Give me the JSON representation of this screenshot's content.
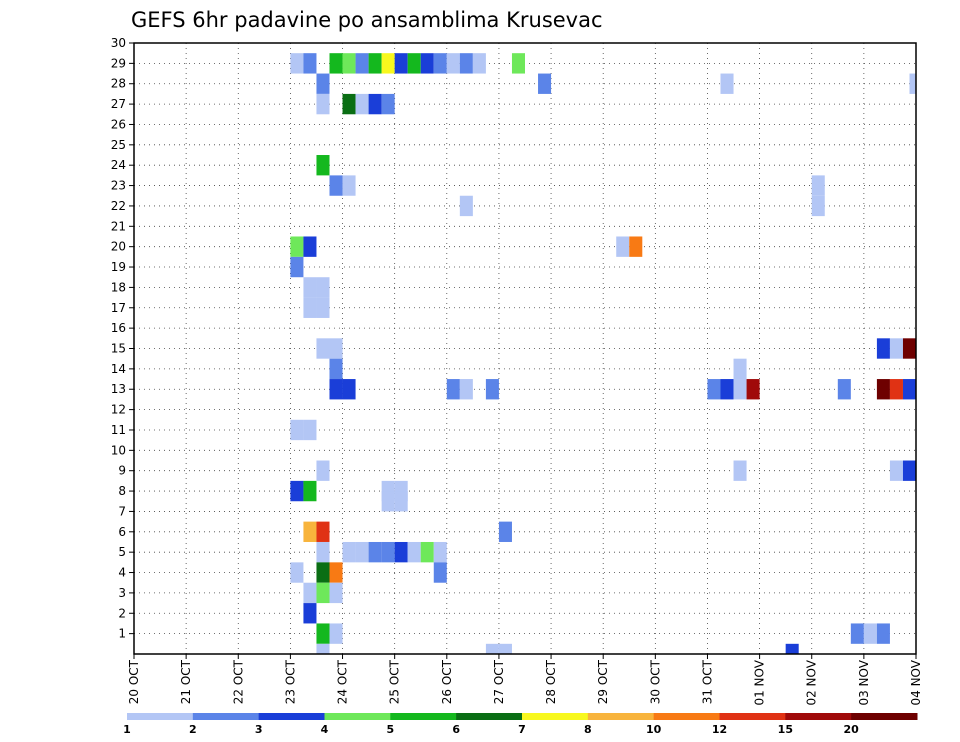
{
  "chart_data": {
    "type": "heatmap",
    "title": "GEFS 6hr padavine po ansamblima Krusevac",
    "xlabel": "",
    "ylabel": "",
    "x_tick_labels": [
      "20 OCT",
      "21 OCT",
      "22 OCT",
      "23 OCT",
      "24 OCT",
      "25 OCT",
      "26 OCT",
      "27 OCT",
      "28 OCT",
      "29 OCT",
      "30 OCT",
      "31 OCT",
      "01 NOV",
      "02 NOV",
      "03 NOV",
      "04 NOV"
    ],
    "y_tick_labels": [
      "1",
      "2",
      "3",
      "4",
      "5",
      "6",
      "7",
      "8",
      "9",
      "10",
      "11",
      "12",
      "13",
      "14",
      "15",
      "16",
      "17",
      "18",
      "19",
      "20",
      "21",
      "22",
      "23",
      "24",
      "25",
      "26",
      "27",
      "28",
      "29",
      "30"
    ],
    "xlim": [
      0,
      60
    ],
    "ylim": [
      0,
      30
    ],
    "x_unit": "6-hour steps from 20 OCT",
    "grid": true,
    "legend": {
      "position": "bottom",
      "labels": [
        "1",
        "2",
        "3",
        "4",
        "5",
        "6",
        "7",
        "8",
        "10",
        "12",
        "15",
        "20"
      ],
      "colors": [
        "#b3c6f5",
        "#5b84e8",
        "#1a3ed8",
        "#6ee85a",
        "#14b81e",
        "#0a6e14",
        "#f8f81e",
        "#f8b43c",
        "#f87a14",
        "#e03214",
        "#a00a0a",
        "#6e0000"
      ]
    },
    "cells": [
      {
        "x": 12.5,
        "y": 29,
        "v": 1
      },
      {
        "x": 13.5,
        "y": 29,
        "v": 2
      },
      {
        "x": 15.5,
        "y": 29,
        "v": 5
      },
      {
        "x": 16.5,
        "y": 29,
        "v": 4
      },
      {
        "x": 17.5,
        "y": 29,
        "v": 2
      },
      {
        "x": 18.5,
        "y": 29,
        "v": 5
      },
      {
        "x": 19.5,
        "y": 29,
        "v": 7
      },
      {
        "x": 20.5,
        "y": 29,
        "v": 3
      },
      {
        "x": 21.5,
        "y": 29,
        "v": 5
      },
      {
        "x": 22.5,
        "y": 29,
        "v": 3
      },
      {
        "x": 23.5,
        "y": 29,
        "v": 2
      },
      {
        "x": 24.5,
        "y": 29,
        "v": 1
      },
      {
        "x": 25.5,
        "y": 29,
        "v": 2
      },
      {
        "x": 26.5,
        "y": 29,
        "v": 1
      },
      {
        "x": 29.5,
        "y": 29,
        "v": 4
      },
      {
        "x": 14.5,
        "y": 28,
        "v": 2
      },
      {
        "x": 31.5,
        "y": 28,
        "v": 2
      },
      {
        "x": 45.5,
        "y": 28,
        "v": 1
      },
      {
        "x": 60,
        "y": 28,
        "v": 1
      },
      {
        "x": 14.5,
        "y": 27,
        "v": 1
      },
      {
        "x": 16.5,
        "y": 27,
        "v": 6
      },
      {
        "x": 17.5,
        "y": 27,
        "v": 1
      },
      {
        "x": 18.5,
        "y": 27,
        "v": 3
      },
      {
        "x": 19.5,
        "y": 27,
        "v": 2
      },
      {
        "x": 14.5,
        "y": 24,
        "v": 5
      },
      {
        "x": 15.5,
        "y": 23,
        "v": 2
      },
      {
        "x": 16.5,
        "y": 23,
        "v": 1
      },
      {
        "x": 52.5,
        "y": 23,
        "v": 1
      },
      {
        "x": 25.5,
        "y": 22,
        "v": 1
      },
      {
        "x": 52.5,
        "y": 22,
        "v": 1
      },
      {
        "x": 12.5,
        "y": 20,
        "v": 4
      },
      {
        "x": 13.5,
        "y": 20,
        "v": 3
      },
      {
        "x": 37.5,
        "y": 20,
        "v": 1
      },
      {
        "x": 38.5,
        "y": 20,
        "v": 10
      },
      {
        "x": 12.5,
        "y": 19,
        "v": 2
      },
      {
        "x": 13.5,
        "y": 18,
        "v": 1
      },
      {
        "x": 14.5,
        "y": 18,
        "v": 1
      },
      {
        "x": 13.5,
        "y": 17,
        "v": 1
      },
      {
        "x": 14.5,
        "y": 17,
        "v": 1
      },
      {
        "x": 14.5,
        "y": 15,
        "v": 1
      },
      {
        "x": 15.5,
        "y": 15,
        "v": 1
      },
      {
        "x": 57.5,
        "y": 15,
        "v": 3
      },
      {
        "x": 58.5,
        "y": 15,
        "v": 1
      },
      {
        "x": 59.5,
        "y": 15,
        "v": 20
      },
      {
        "x": 15.5,
        "y": 14,
        "v": 2
      },
      {
        "x": 46.5,
        "y": 14,
        "v": 1
      },
      {
        "x": 15.5,
        "y": 13,
        "v": 3
      },
      {
        "x": 16.5,
        "y": 13,
        "v": 3
      },
      {
        "x": 24.5,
        "y": 13,
        "v": 2
      },
      {
        "x": 25.5,
        "y": 13,
        "v": 1
      },
      {
        "x": 27.5,
        "y": 13,
        "v": 2
      },
      {
        "x": 44.5,
        "y": 13,
        "v": 2
      },
      {
        "x": 45.5,
        "y": 13,
        "v": 3
      },
      {
        "x": 46.5,
        "y": 13,
        "v": 1
      },
      {
        "x": 47.5,
        "y": 13,
        "v": 15
      },
      {
        "x": 54.5,
        "y": 13,
        "v": 2
      },
      {
        "x": 57.5,
        "y": 13,
        "v": 20
      },
      {
        "x": 58.5,
        "y": 13,
        "v": 12
      },
      {
        "x": 59.5,
        "y": 13,
        "v": 3
      },
      {
        "x": 12.5,
        "y": 11,
        "v": 1
      },
      {
        "x": 13.5,
        "y": 11,
        "v": 1
      },
      {
        "x": 14.5,
        "y": 9,
        "v": 1
      },
      {
        "x": 46.5,
        "y": 9,
        "v": 1
      },
      {
        "x": 58.5,
        "y": 9,
        "v": 1
      },
      {
        "x": 59.5,
        "y": 9,
        "v": 3
      },
      {
        "x": 12.5,
        "y": 8,
        "v": 3
      },
      {
        "x": 13.5,
        "y": 8,
        "v": 5
      },
      {
        "x": 19.5,
        "y": 8,
        "v": 1
      },
      {
        "x": 20.5,
        "y": 8,
        "v": 1
      },
      {
        "x": 19.5,
        "y": 7.5,
        "v": 1
      },
      {
        "x": 20.5,
        "y": 7.5,
        "v": 1
      },
      {
        "x": 13.5,
        "y": 6,
        "v": 8
      },
      {
        "x": 14.5,
        "y": 6,
        "v": 12
      },
      {
        "x": 28.5,
        "y": 6,
        "v": 2
      },
      {
        "x": 14.5,
        "y": 5,
        "v": 1
      },
      {
        "x": 16.5,
        "y": 5,
        "v": 1
      },
      {
        "x": 17.5,
        "y": 5,
        "v": 1
      },
      {
        "x": 18.5,
        "y": 5,
        "v": 2
      },
      {
        "x": 19.5,
        "y": 5,
        "v": 2
      },
      {
        "x": 20.5,
        "y": 5,
        "v": 3
      },
      {
        "x": 21.5,
        "y": 5,
        "v": 1
      },
      {
        "x": 22.5,
        "y": 5,
        "v": 4
      },
      {
        "x": 23.5,
        "y": 5,
        "v": 1
      },
      {
        "x": 12.5,
        "y": 4,
        "v": 1
      },
      {
        "x": 14.5,
        "y": 4,
        "v": 6
      },
      {
        "x": 15.5,
        "y": 4,
        "v": 10
      },
      {
        "x": 23.5,
        "y": 4,
        "v": 2
      },
      {
        "x": 13.5,
        "y": 3,
        "v": 1
      },
      {
        "x": 14.5,
        "y": 3,
        "v": 4
      },
      {
        "x": 15.5,
        "y": 3,
        "v": 1
      },
      {
        "x": 13.5,
        "y": 2,
        "v": 3
      },
      {
        "x": 14.5,
        "y": 1,
        "v": 5
      },
      {
        "x": 15.5,
        "y": 1,
        "v": 1
      },
      {
        "x": 55.5,
        "y": 1,
        "v": 2
      },
      {
        "x": 56.5,
        "y": 1,
        "v": 1
      },
      {
        "x": 57.5,
        "y": 1,
        "v": 2
      },
      {
        "x": 14.5,
        "y": 0,
        "v": 1
      },
      {
        "x": 27.5,
        "y": 0,
        "v": 1
      },
      {
        "x": 28.5,
        "y": 0,
        "v": 1
      },
      {
        "x": 50.5,
        "y": 0,
        "v": 3
      }
    ]
  }
}
